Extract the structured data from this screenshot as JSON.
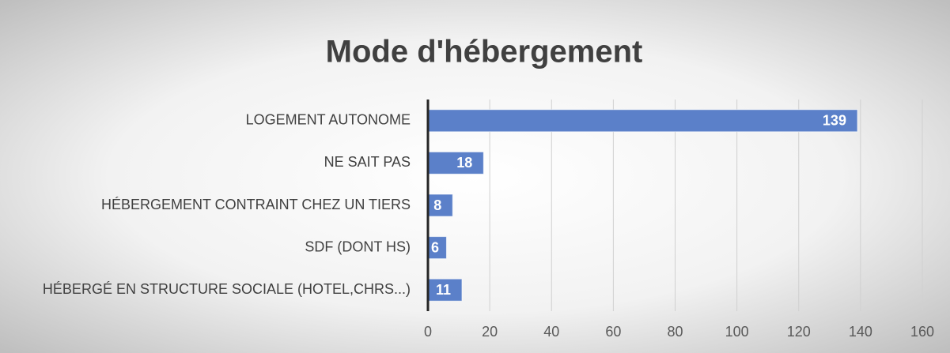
{
  "chart_data": {
    "type": "bar",
    "orientation": "horizontal",
    "title": "Mode d'hébergement",
    "categories": [
      "LOGEMENT AUTONOME",
      "NE SAIT PAS",
      "HÉBERGEMENT CONTRAINT CHEZ UN TIERS",
      "SDF (DONT HS)",
      "HÉBERGÉ EN STRUCTURE SOCIALE (HOTEL,CHRS...)"
    ],
    "values": [
      139,
      18,
      8,
      6,
      11
    ],
    "color": "#5b80c9",
    "xlim": [
      0,
      160
    ],
    "xticks": [
      0,
      20,
      40,
      60,
      80,
      100,
      120,
      140,
      160
    ],
    "grid": true
  }
}
